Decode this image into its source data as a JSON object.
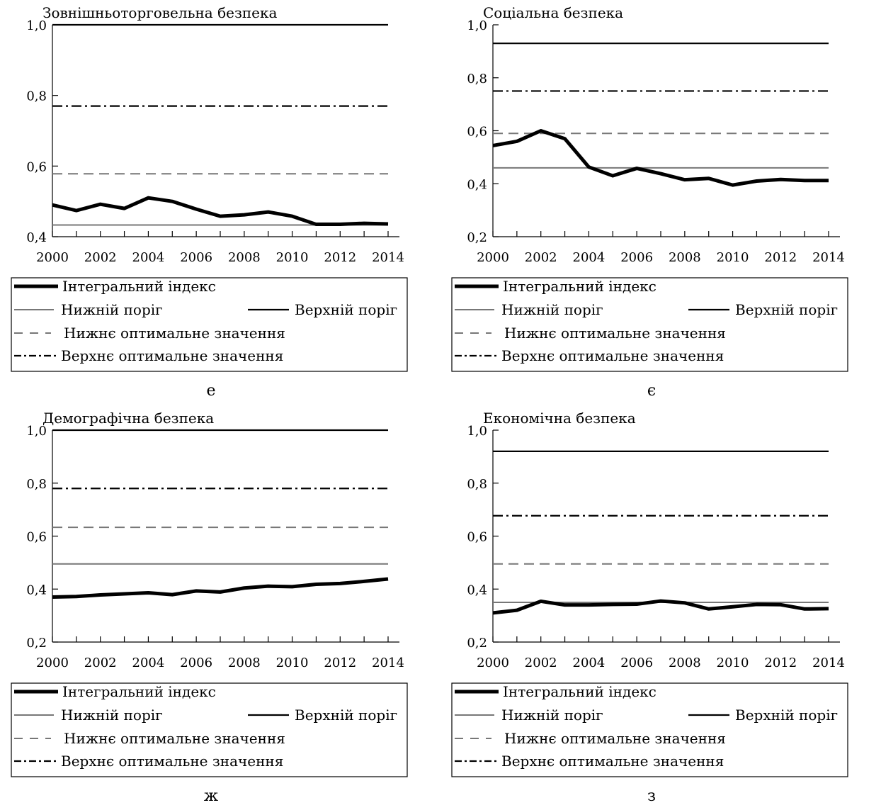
{
  "legend_labels": {
    "index": "Інтегральний індекс",
    "lower_threshold": "Нижній поріг",
    "upper_threshold": "Верхній поріг",
    "lower_optimal": "Нижнє оптимальне значення",
    "upper_optimal": "Верхнє оптимальне значення"
  },
  "colors": {
    "index": "#000000",
    "upper": "#000000",
    "lower": "#777777",
    "lower_opt": "#777777",
    "upper_opt": "#000000"
  },
  "chart_data": [
    {
      "type": "line",
      "title": "Зовнішньоторговельна безпека",
      "caption": "е",
      "x_tick_labels": [
        "2000",
        "2002",
        "2004",
        "2006",
        "2008",
        "2010",
        "2012",
        "2014"
      ],
      "y_tick_labels": [
        "1,0",
        "0,8",
        "0,6",
        "0,4"
      ],
      "ylim": [
        0.4,
        1.0
      ],
      "xlim": [
        2000,
        2014
      ],
      "x": [
        2000,
        2001,
        2002,
        2003,
        2004,
        2005,
        2006,
        2007,
        2008,
        2009,
        2010,
        2011,
        2012,
        2013,
        2014
      ],
      "series": [
        {
          "name": "Інтегральний індекс",
          "values": [
            0.49,
            0.474,
            0.492,
            0.48,
            0.51,
            0.5,
            0.478,
            0.458,
            0.462,
            0.47,
            0.458,
            0.435,
            0.435,
            0.438,
            0.436
          ]
        },
        {
          "name": "Нижній поріг",
          "constant": 0.433
        },
        {
          "name": "Верхній поріг",
          "constant": 1.0
        },
        {
          "name": "Нижнє оптимальне значення",
          "constant": 0.578
        },
        {
          "name": "Верхнє оптимальне значення",
          "constant": 0.77
        }
      ]
    },
    {
      "type": "line",
      "title": "Соціальна безпека",
      "caption": "є",
      "x_tick_labels": [
        "2000",
        "2002",
        "2004",
        "2006",
        "2008",
        "2010",
        "2012",
        "2014"
      ],
      "y_tick_labels": [
        "1,0",
        "0,8",
        "0,6",
        "0,4",
        "0,2"
      ],
      "ylim": [
        0.2,
        1.0
      ],
      "xlim": [
        2000,
        2014
      ],
      "x": [
        2000,
        2001,
        2002,
        2003,
        2004,
        2005,
        2006,
        2007,
        2008,
        2009,
        2010,
        2011,
        2012,
        2013,
        2014
      ],
      "series": [
        {
          "name": "Інтегральний індекс",
          "values": [
            0.544,
            0.56,
            0.6,
            0.57,
            0.463,
            0.43,
            0.458,
            0.438,
            0.415,
            0.42,
            0.395,
            0.41,
            0.416,
            0.412,
            0.412
          ]
        },
        {
          "name": "Нижній поріг",
          "constant": 0.46
        },
        {
          "name": "Верхній поріг",
          "constant": 0.93
        },
        {
          "name": "Нижнє оптимальне значення",
          "constant": 0.59
        },
        {
          "name": "Верхнє оптимальне значення",
          "constant": 0.75
        }
      ]
    },
    {
      "type": "line",
      "title": "Демографічна безпека",
      "caption": "ж",
      "x_tick_labels": [
        "2000",
        "2002",
        "2004",
        "2006",
        "2008",
        "2010",
        "2012",
        "2014"
      ],
      "y_tick_labels": [
        "1,0",
        "0,8",
        "0,6",
        "0,4",
        "0,2"
      ],
      "ylim": [
        0.2,
        1.0
      ],
      "xlim": [
        2000,
        2014
      ],
      "x": [
        2000,
        2001,
        2002,
        2003,
        2004,
        2005,
        2006,
        2007,
        2008,
        2009,
        2010,
        2011,
        2012,
        2013,
        2014
      ],
      "series": [
        {
          "name": "Інтегральний індекс",
          "values": [
            0.37,
            0.372,
            0.378,
            0.382,
            0.386,
            0.379,
            0.393,
            0.389,
            0.404,
            0.411,
            0.409,
            0.418,
            0.421,
            0.429,
            0.438
          ]
        },
        {
          "name": "Нижній поріг",
          "constant": 0.495
        },
        {
          "name": "Верхній поріг",
          "constant": 1.0
        },
        {
          "name": "Нижнє оптимальне значення",
          "constant": 0.633
        },
        {
          "name": "Верхнє оптимальне значення",
          "constant": 0.78
        }
      ]
    },
    {
      "type": "line",
      "title": "Економічна безпека",
      "caption": "з",
      "x_tick_labels": [
        "2000",
        "2002",
        "2004",
        "2006",
        "2008",
        "2010",
        "2012",
        "2014"
      ],
      "y_tick_labels": [
        "1,0",
        "0,8",
        "0,6",
        "0,4",
        "0,2"
      ],
      "ylim": [
        0.2,
        1.0
      ],
      "xlim": [
        2000,
        2014
      ],
      "x": [
        2000,
        2001,
        2002,
        2003,
        2004,
        2005,
        2006,
        2007,
        2008,
        2009,
        2010,
        2011,
        2012,
        2013,
        2014
      ],
      "series": [
        {
          "name": "Інтегральний індекс",
          "values": [
            0.31,
            0.32,
            0.354,
            0.34,
            0.34,
            0.342,
            0.343,
            0.355,
            0.348,
            0.325,
            0.333,
            0.342,
            0.341,
            0.325,
            0.326
          ]
        },
        {
          "name": "Нижній поріг",
          "constant": 0.35
        },
        {
          "name": "Верхній поріг",
          "constant": 0.92
        },
        {
          "name": "Нижнє оптимальне значення",
          "constant": 0.495
        },
        {
          "name": "Верхнє оптимальне значення",
          "constant": 0.677
        }
      ]
    }
  ]
}
